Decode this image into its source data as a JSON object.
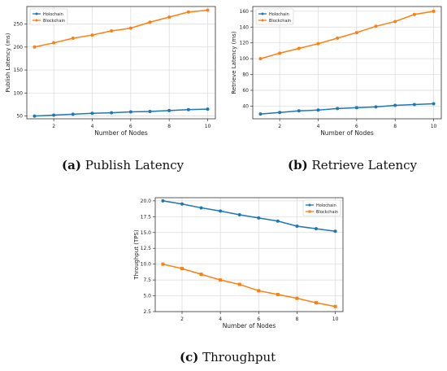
{
  "captions": [
    {
      "letter": "(a)",
      "text": "Publish Latency"
    },
    {
      "letter": "(b)",
      "text": "Retrieve Latency"
    },
    {
      "letter": "(c)",
      "text": "Throughput"
    }
  ],
  "chart_data": [
    {
      "type": "line",
      "xlabel": "Number of Nodes",
      "ylabel": "Publish Latency (ms)",
      "x": [
        1,
        2,
        3,
        4,
        5,
        6,
        7,
        8,
        9,
        10
      ],
      "xlim": [
        0.6,
        10.4
      ],
      "ylim": [
        44,
        288
      ],
      "xticks": [
        2,
        4,
        6,
        8,
        10
      ],
      "yticks": [
        50,
        100,
        150,
        200,
        250
      ],
      "grid": true,
      "legend": "top-left",
      "series": [
        {
          "name": "Holochain",
          "color": "#1f77b4",
          "marker": "circle",
          "values": [
            50,
            52,
            54,
            56,
            57,
            59,
            60,
            62,
            64,
            65
          ]
        },
        {
          "name": "Blockchain",
          "color": "#ff7f0e",
          "marker": "circle",
          "values": [
            200,
            209,
            219,
            226,
            235,
            241,
            254,
            265,
            276,
            280
          ]
        }
      ]
    },
    {
      "type": "line",
      "xlabel": "Number of Nodes",
      "ylabel": "Retrieve Latency (ms)",
      "x": [
        1,
        2,
        3,
        4,
        5,
        6,
        7,
        8,
        9,
        10
      ],
      "xlim": [
        0.6,
        10.4
      ],
      "ylim": [
        24,
        166
      ],
      "xticks": [
        2,
        4,
        6,
        8,
        10
      ],
      "yticks": [
        40,
        60,
        80,
        100,
        120,
        140,
        160
      ],
      "grid": true,
      "legend": "top-left",
      "series": [
        {
          "name": "Holochain",
          "color": "#1f77b4",
          "marker": "circle",
          "values": [
            30,
            32,
            34,
            35,
            37,
            38,
            39,
            41,
            42,
            43
          ]
        },
        {
          "name": "Blockchain",
          "color": "#ff7f0e",
          "marker": "circle",
          "values": [
            100,
            107,
            113,
            119,
            126,
            133,
            141,
            147,
            156,
            160
          ]
        }
      ]
    },
    {
      "type": "line",
      "xlabel": "Number of Nodes",
      "ylabel": "Throughput (TPS)",
      "x": [
        1,
        2,
        3,
        4,
        5,
        6,
        7,
        8,
        9,
        10
      ],
      "xlim": [
        0.6,
        10.4
      ],
      "ylim": [
        2.5,
        20.5
      ],
      "xticks": [
        2,
        4,
        6,
        8,
        10
      ],
      "yticks": [
        2.5,
        5.0,
        7.5,
        10.0,
        12.5,
        15.0,
        17.5,
        20.0
      ],
      "grid": true,
      "legend": "top-right",
      "series": [
        {
          "name": "Holochain",
          "color": "#1f77b4",
          "marker": "circle",
          "values": [
            20.0,
            19.5,
            18.9,
            18.4,
            17.8,
            17.3,
            16.8,
            16.0,
            15.6,
            15.2
          ]
        },
        {
          "name": "Blockchain",
          "color": "#ff7f0e",
          "marker": "square",
          "values": [
            10.0,
            9.3,
            8.4,
            7.5,
            6.8,
            5.8,
            5.2,
            4.6,
            3.9,
            3.3
          ]
        }
      ]
    }
  ]
}
